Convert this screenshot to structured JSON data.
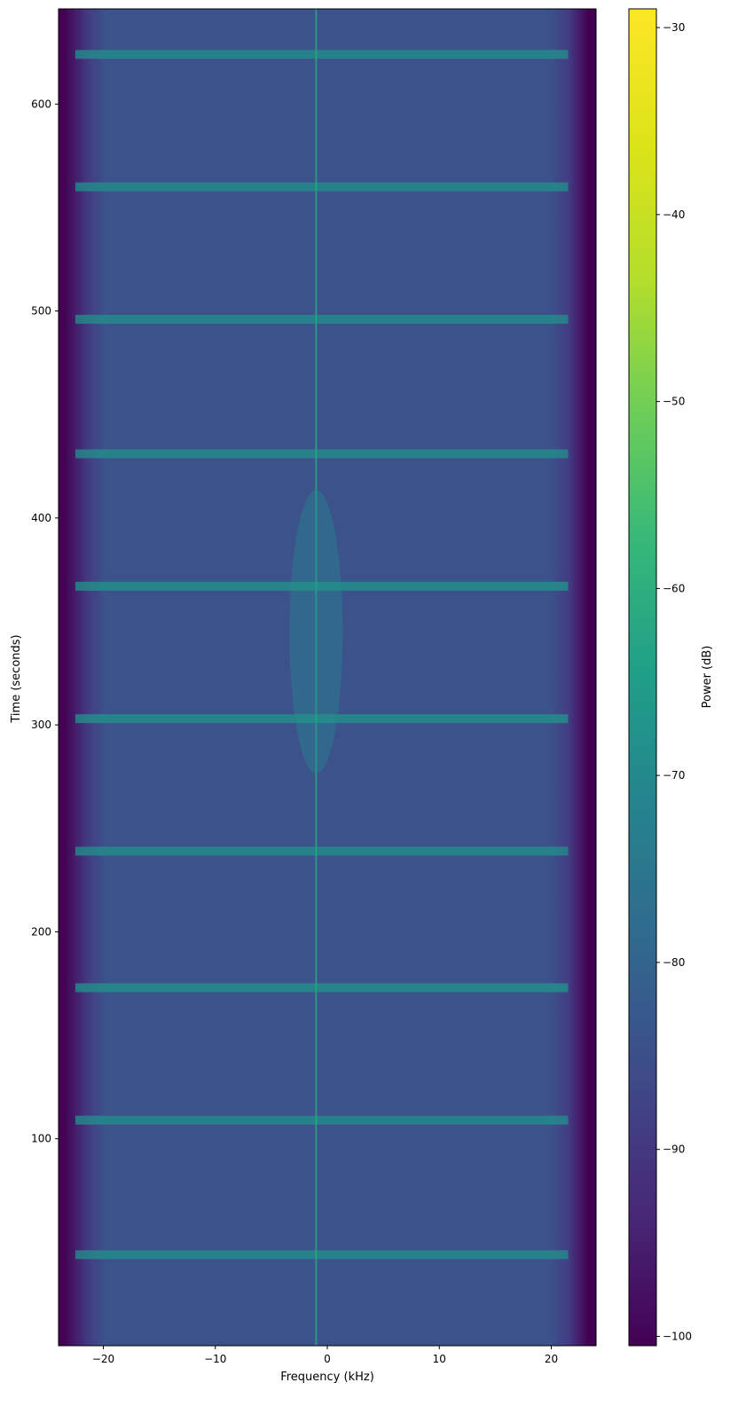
{
  "chart_data": {
    "type": "heatmap",
    "subtype": "spectrogram",
    "colormap": "viridis",
    "xlabel": "Frequency (kHz)",
    "ylabel": "Time (seconds)",
    "colorbar_label": "Power (dB)",
    "xlim": [
      -24,
      24
    ],
    "ylim": [
      0,
      646
    ],
    "clim": [
      -100.5,
      -29
    ],
    "x_ticks": [
      -20,
      -10,
      0,
      10,
      20
    ],
    "y_ticks": [
      100,
      200,
      300,
      400,
      500,
      600
    ],
    "colorbar_ticks": [
      -30,
      -40,
      -50,
      -60,
      -70,
      -80,
      -90,
      -100
    ],
    "x_tick_labels": [
      "−20",
      "−10",
      "0",
      "10",
      "20"
    ],
    "y_tick_labels": [
      "100",
      "200",
      "300",
      "400",
      "500",
      "600"
    ],
    "colorbar_tick_labels": [
      "−30",
      "−40",
      "−50",
      "−60",
      "−70",
      "−80",
      "−90",
      "−100"
    ],
    "background_power_db": -83,
    "band_edge_power_db": -98,
    "passband_khz": [
      -22.5,
      21.5
    ],
    "carrier": {
      "frequency_khz": -1.0,
      "power_db": -62,
      "description": "narrow vertical carrier line near 0 kHz, strongest between ~270 s and ~420 s"
    },
    "strong_bands": [
      {
        "time_s": 44,
        "power_db": -68
      },
      {
        "time_s": 109,
        "power_db": -68
      },
      {
        "time_s": 173,
        "power_db": -67
      },
      {
        "time_s": 239,
        "power_db": -68
      },
      {
        "time_s": 303,
        "power_db": -67
      },
      {
        "time_s": 367,
        "power_db": -67
      },
      {
        "time_s": 431,
        "power_db": -68
      },
      {
        "time_s": 496,
        "power_db": -68
      },
      {
        "time_s": 560,
        "power_db": -68
      },
      {
        "time_s": 624,
        "power_db": -68
      }
    ],
    "grid": false
  }
}
